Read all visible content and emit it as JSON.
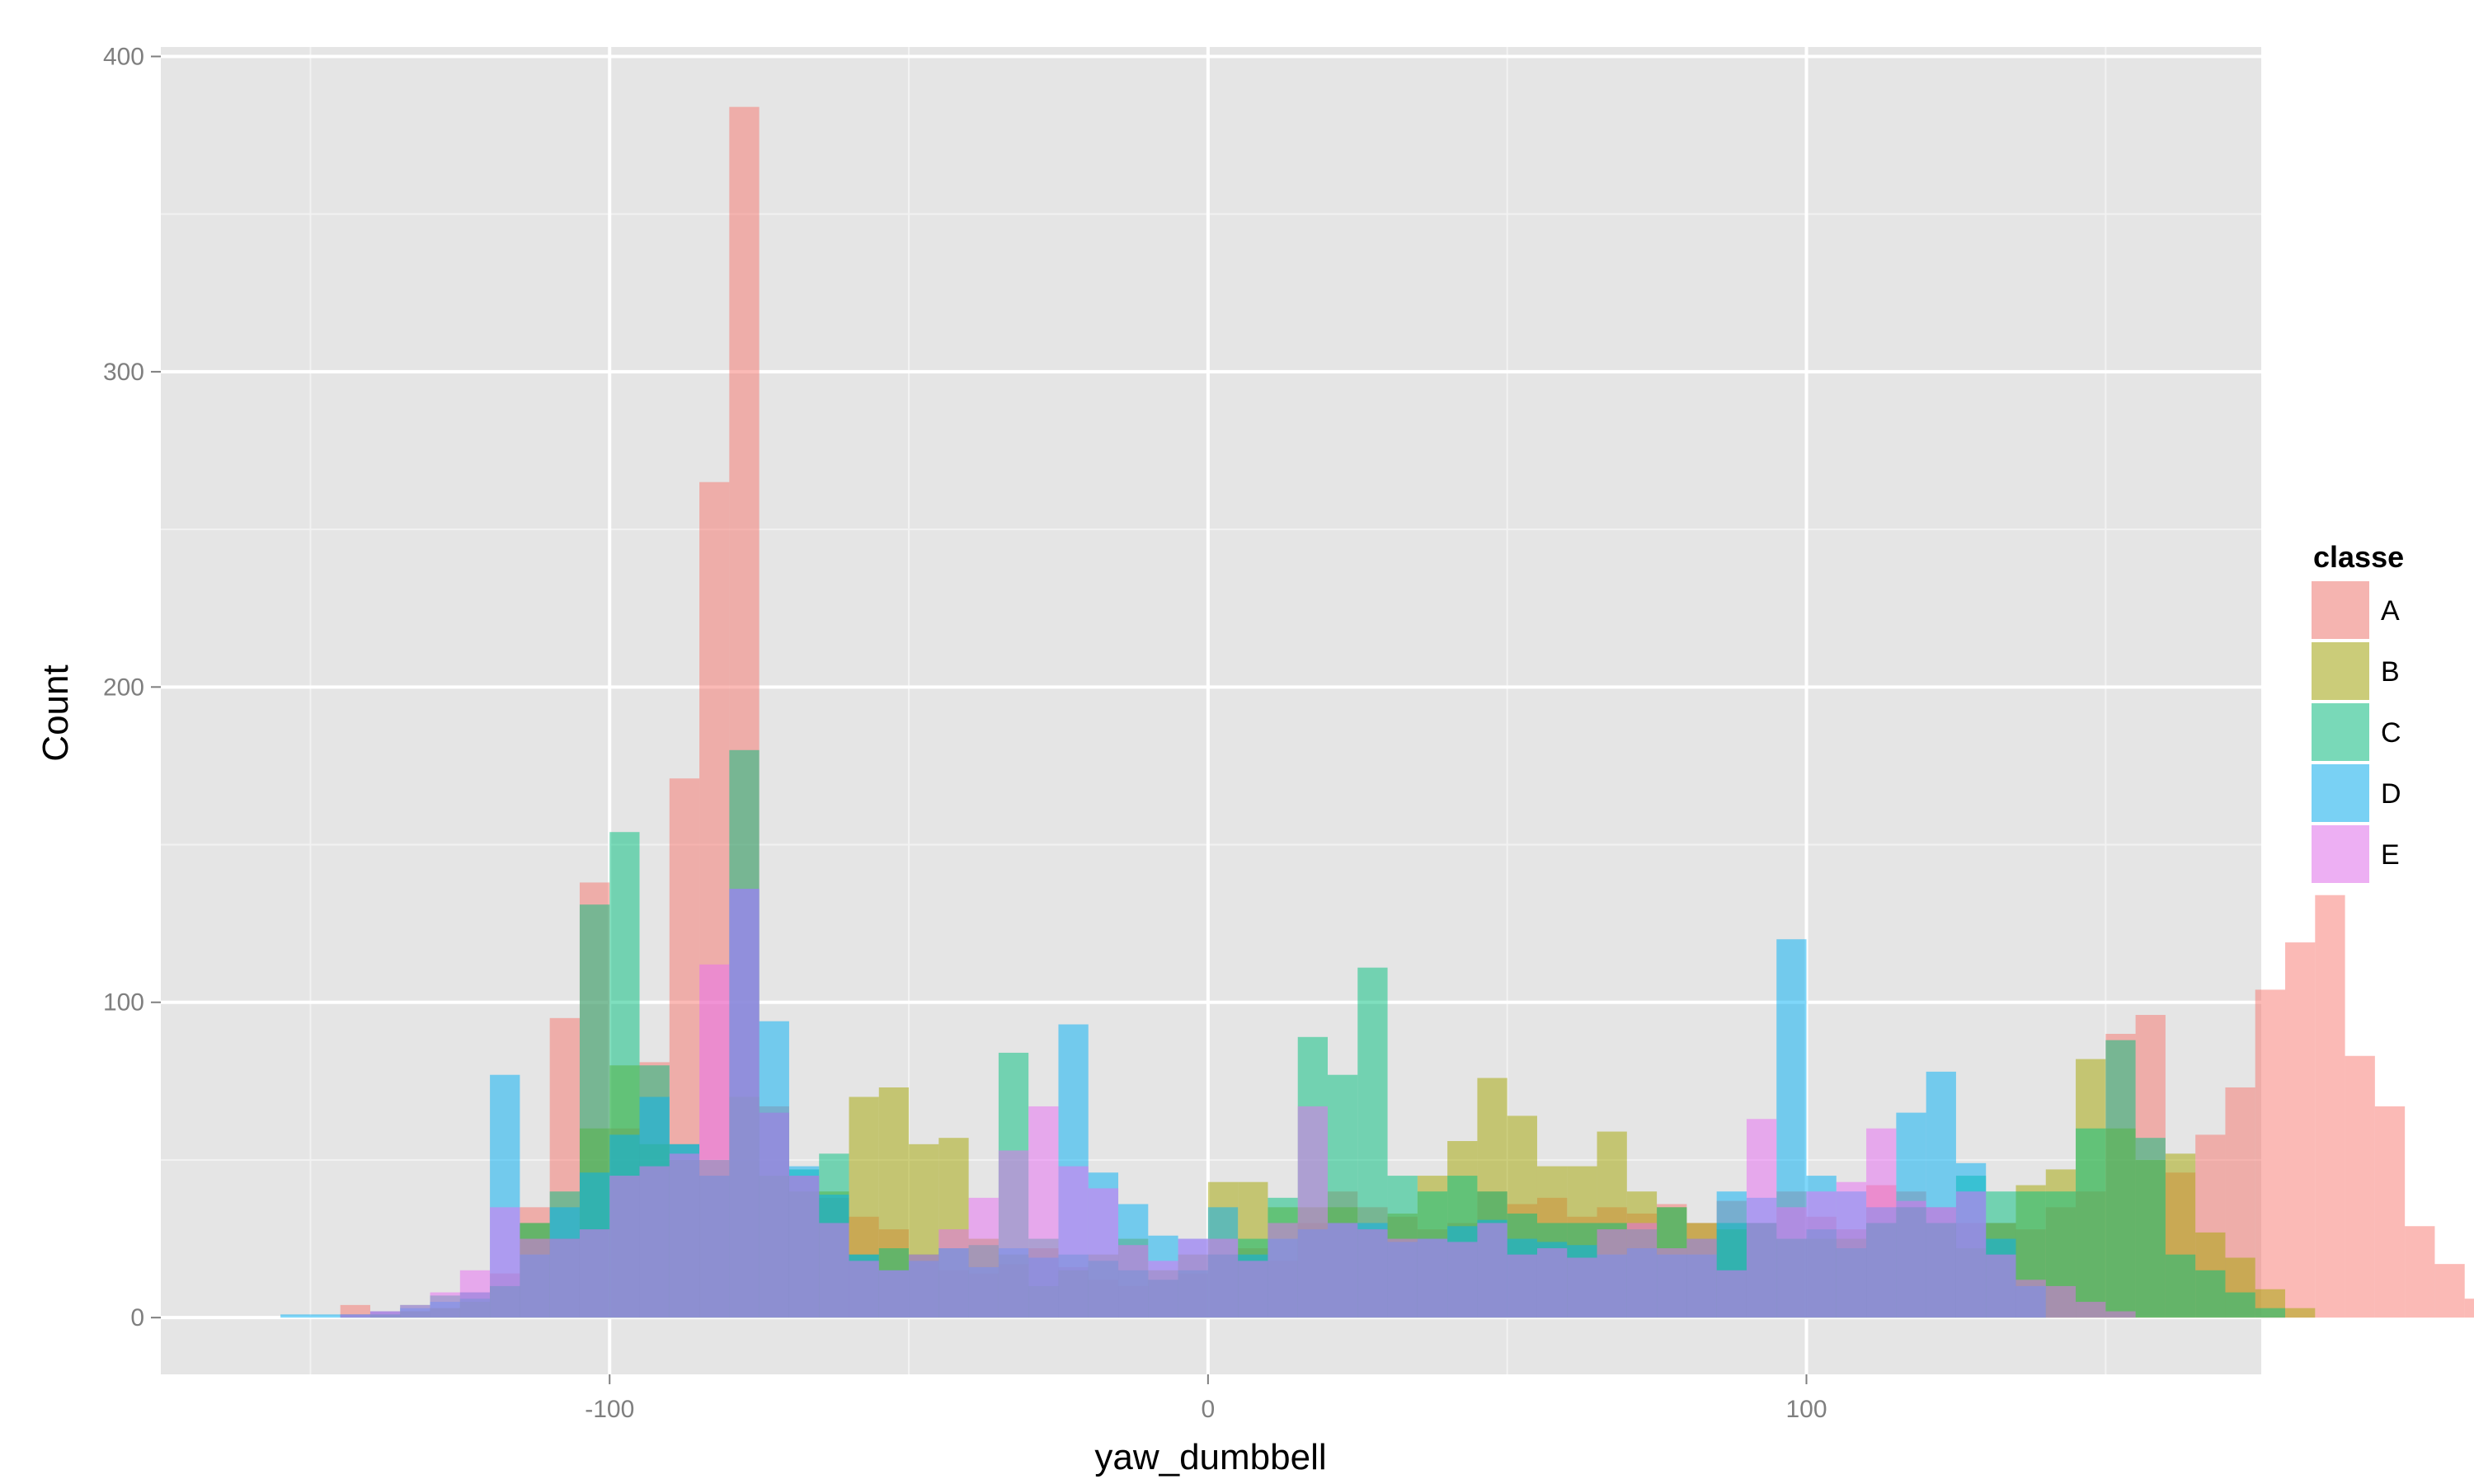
{
  "chart_data": {
    "type": "bar",
    "subtype": "overlaid-histogram",
    "xlabel": "yaw_dumbbell",
    "ylabel": "Count",
    "x_ticks": [
      "-100",
      "0",
      "100"
    ],
    "x_tick_values": [
      -100,
      0,
      100
    ],
    "y_ticks": [
      "0",
      "100",
      "200",
      "300",
      "400"
    ],
    "y_tick_values": [
      0,
      100,
      200,
      300,
      400
    ],
    "xlim": [
      -175,
      176
    ],
    "ylim": [
      -18,
      403
    ],
    "bin_width": 5,
    "bin_edges_start": -155,
    "grid": true,
    "legend_title": "classe",
    "legend_position": "right",
    "opacity": 0.5,
    "series": [
      {
        "name": "A",
        "color": "#F8766D",
        "values": [
          0,
          0,
          4,
          2,
          2,
          3,
          8,
          14,
          35,
          95,
          138,
          60,
          81,
          171,
          265,
          384,
          67,
          45,
          38,
          32,
          28,
          20,
          15,
          14,
          17,
          22,
          16,
          12,
          10,
          12,
          14,
          20,
          22,
          18,
          30,
          40,
          35,
          32,
          28,
          30,
          40,
          36,
          38,
          32,
          35,
          33,
          36,
          30,
          37,
          30,
          40,
          32,
          28,
          42,
          40,
          35,
          30,
          30,
          28,
          35,
          40,
          90,
          96,
          46,
          58,
          73,
          104,
          119,
          134,
          83,
          67,
          29,
          17,
          6
        ]
      },
      {
        "name": "B",
        "color": "#A3A500",
        "values": [
          0,
          0,
          0,
          1,
          2,
          3,
          5,
          10,
          30,
          25,
          60,
          80,
          55,
          50,
          45,
          70,
          45,
          40,
          40,
          70,
          73,
          55,
          57,
          25,
          20,
          10,
          15,
          20,
          25,
          15,
          20,
          43,
          43,
          35,
          35,
          35,
          28,
          33,
          45,
          56,
          76,
          64,
          48,
          48,
          59,
          40,
          35,
          30,
          28,
          30,
          25,
          25,
          25,
          30,
          35,
          30,
          22,
          30,
          42,
          47,
          82,
          60,
          50,
          52,
          27,
          19,
          9,
          3
        ]
      },
      {
        "name": "C",
        "color": "#00BF7D",
        "values": [
          0,
          0,
          1,
          1,
          4,
          7,
          6,
          10,
          30,
          40,
          131,
          154,
          80,
          55,
          50,
          180,
          65,
          47,
          52,
          20,
          22,
          20,
          22,
          23,
          84,
          25,
          20,
          18,
          15,
          12,
          15,
          20,
          25,
          38,
          89,
          77,
          111,
          45,
          40,
          45,
          40,
          33,
          30,
          30,
          30,
          28,
          35,
          25,
          30,
          30,
          25,
          28,
          22,
          30,
          35,
          30,
          45,
          40,
          40,
          40,
          60,
          88,
          57,
          20,
          15,
          8,
          3
        ]
      },
      {
        "name": "D",
        "color": "#00B0F6",
        "values": [
          1,
          1,
          1,
          2,
          3,
          5,
          8,
          77,
          20,
          35,
          46,
          58,
          70,
          55,
          45,
          136,
          94,
          48,
          39,
          20,
          15,
          18,
          22,
          16,
          22,
          19,
          93,
          46,
          36,
          26,
          25,
          35,
          20,
          25,
          28,
          30,
          30,
          24,
          25,
          29,
          31,
          25,
          24,
          23,
          20,
          22,
          20,
          20,
          40,
          38,
          120,
          45,
          40,
          35,
          65,
          78,
          49,
          25,
          10
        ]
      },
      {
        "name": "E",
        "color": "#E76BF3",
        "values": [
          0,
          0,
          1,
          2,
          4,
          8,
          15,
          35,
          25,
          25,
          28,
          45,
          48,
          52,
          112,
          136,
          65,
          45,
          30,
          18,
          15,
          20,
          28,
          38,
          53,
          67,
          48,
          41,
          23,
          18,
          25,
          25,
          18,
          30,
          67,
          30,
          28,
          25,
          25,
          24,
          30,
          20,
          22,
          19,
          28,
          30,
          22,
          25,
          15,
          63,
          35,
          40,
          43,
          60,
          37,
          35,
          40,
          20,
          12,
          10,
          5,
          2
        ]
      }
    ]
  }
}
